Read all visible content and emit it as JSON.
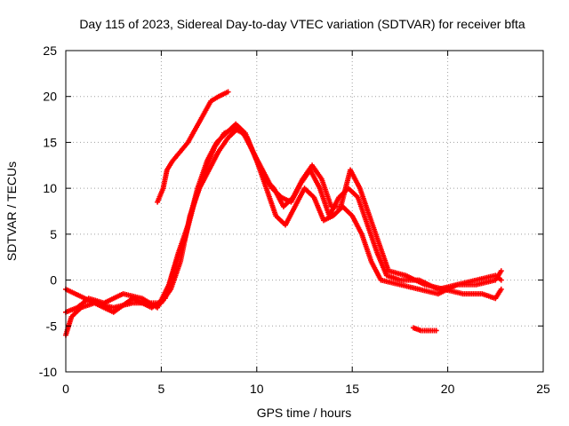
{
  "chart_data": {
    "type": "scatter",
    "title": "Day 115 of 2023, Sidereal Day-to-day VTEC variation (SDTVAR) for receiver bfta",
    "xlabel": "GPS time / hours",
    "ylabel": "SDTVAR / TECUs",
    "xlim": [
      0,
      25
    ],
    "ylim": [
      -10,
      25
    ],
    "xticks": [
      0,
      5,
      10,
      15,
      20,
      25
    ],
    "yticks": [
      -10,
      -5,
      0,
      5,
      10,
      15,
      20,
      25
    ],
    "grid": true,
    "series_color": "#ff0000",
    "series": [
      {
        "name": "satellite-track-1",
        "points": [
          [
            0,
            -6
          ],
          [
            0.3,
            -4
          ],
          [
            0.8,
            -3
          ],
          [
            1.5,
            -2.5
          ],
          [
            2.5,
            -3
          ],
          [
            3.5,
            -2.5
          ],
          [
            4.5,
            -2.5
          ],
          [
            5,
            -2.5
          ],
          [
            5.5,
            -1
          ],
          [
            6,
            2
          ],
          [
            6.5,
            7
          ],
          [
            7,
            10
          ],
          [
            7.5,
            12
          ],
          [
            8,
            14
          ],
          [
            8.5,
            15.5
          ],
          [
            9,
            16.5
          ],
          [
            9.5,
            15.5
          ],
          [
            10,
            13
          ],
          [
            10.5,
            10
          ],
          [
            11,
            7
          ],
          [
            11.5,
            6
          ],
          [
            12,
            8
          ],
          [
            12.5,
            10
          ],
          [
            13,
            9
          ],
          [
            13.5,
            6.5
          ],
          [
            14,
            7
          ],
          [
            14.5,
            8
          ],
          [
            15,
            7
          ],
          [
            15.5,
            5
          ],
          [
            16,
            2
          ],
          [
            16.5,
            0
          ],
          [
            17.5,
            -0.5
          ],
          [
            18.5,
            -1
          ],
          [
            19.5,
            -1.5
          ],
          [
            20.5,
            -0.5
          ],
          [
            21.5,
            -0.5
          ],
          [
            22.5,
            0
          ],
          [
            22.8,
            1
          ]
        ]
      },
      {
        "name": "satellite-track-2",
        "points": [
          [
            0,
            -1
          ],
          [
            0.5,
            -1.5
          ],
          [
            1.5,
            -2.5
          ],
          [
            2.5,
            -3.5
          ],
          [
            3.5,
            -2
          ],
          [
            4.5,
            -3
          ],
          [
            5.2,
            -2
          ],
          [
            5.8,
            2
          ],
          [
            6.3,
            5
          ],
          [
            6.8,
            9
          ],
          [
            7.3,
            12
          ],
          [
            7.8,
            14.5
          ],
          [
            8.3,
            16
          ],
          [
            8.8,
            16.5
          ],
          [
            9.3,
            16
          ],
          [
            9.8,
            14
          ],
          [
            10.3,
            12
          ],
          [
            10.8,
            10
          ],
          [
            11.3,
            9
          ],
          [
            11.8,
            8.5
          ],
          [
            12.3,
            10.5
          ],
          [
            12.8,
            12
          ],
          [
            13.3,
            10
          ],
          [
            13.8,
            7
          ],
          [
            14.3,
            9
          ],
          [
            14.8,
            10
          ],
          [
            15.3,
            9
          ],
          [
            15.8,
            6
          ],
          [
            16.3,
            3
          ],
          [
            16.8,
            0.5
          ],
          [
            17.5,
            0
          ],
          [
            18.5,
            0
          ],
          [
            19.5,
            -1
          ],
          [
            20.5,
            -0.5
          ],
          [
            21.5,
            0
          ],
          [
            22.5,
            0.5
          ],
          [
            22.8,
            0
          ]
        ]
      },
      {
        "name": "satellite-track-3",
        "points": [
          [
            4.8,
            8.5
          ],
          [
            5.1,
            10
          ],
          [
            5.3,
            12
          ],
          [
            5.6,
            13
          ],
          [
            6,
            14
          ],
          [
            6.4,
            15
          ],
          [
            6.8,
            16.5
          ],
          [
            7.2,
            18
          ],
          [
            7.6,
            19.5
          ],
          [
            8,
            20
          ],
          [
            8.5,
            20.5
          ]
        ]
      },
      {
        "name": "satellite-track-4",
        "points": [
          [
            0,
            -3.5
          ],
          [
            0.6,
            -3
          ],
          [
            1.2,
            -2
          ],
          [
            2,
            -2.5
          ],
          [
            3,
            -1.5
          ],
          [
            4,
            -2
          ],
          [
            4.8,
            -3
          ],
          [
            5.4,
            -0.5
          ],
          [
            5.9,
            3
          ],
          [
            6.4,
            6
          ],
          [
            6.9,
            10
          ],
          [
            7.4,
            13
          ],
          [
            7.9,
            15
          ],
          [
            8.4,
            16
          ],
          [
            8.9,
            17
          ],
          [
            9.4,
            16
          ],
          [
            9.9,
            13.5
          ],
          [
            10.4,
            11
          ],
          [
            10.9,
            10
          ],
          [
            11.4,
            8
          ],
          [
            11.9,
            9
          ],
          [
            12.4,
            11
          ],
          [
            12.9,
            12.5
          ],
          [
            13.4,
            11
          ],
          [
            13.9,
            8
          ],
          [
            14.4,
            8
          ],
          [
            14.9,
            12
          ],
          [
            15.4,
            10
          ],
          [
            15.9,
            7
          ],
          [
            16.4,
            4
          ],
          [
            16.9,
            1
          ],
          [
            17.8,
            0.5
          ],
          [
            18.8,
            -0.5
          ],
          [
            19.8,
            -1
          ],
          [
            20.8,
            -1.5
          ],
          [
            21.8,
            -1.5
          ],
          [
            22.5,
            -2
          ],
          [
            22.8,
            -1
          ]
        ]
      },
      {
        "name": "satellite-track-5",
        "points": [
          [
            18.2,
            -5.2
          ],
          [
            18.6,
            -5.5
          ],
          [
            19,
            -5.5
          ],
          [
            19.4,
            -5.5
          ]
        ]
      }
    ]
  }
}
